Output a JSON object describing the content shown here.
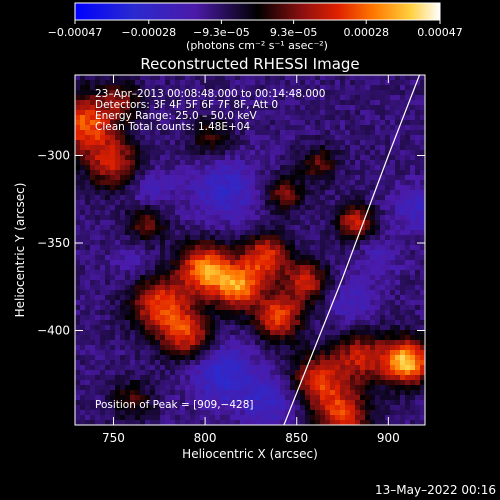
{
  "chart_data": {
    "type": "heatmap",
    "title": "Reconstructed RHESSI Image",
    "xlabel": "Heliocentric X (arcsec)",
    "ylabel": "Heliocentric Y (arcsec)",
    "xlim": [
      729,
      920
    ],
    "ylim": [
      -454,
      -254
    ],
    "x_ticks": [
      {
        "value": 750,
        "label": "750"
      },
      {
        "value": 800,
        "label": "800"
      },
      {
        "value": 850,
        "label": "850"
      },
      {
        "value": 900,
        "label": "900"
      }
    ],
    "y_ticks": [
      {
        "value": -300,
        "label": "−300"
      },
      {
        "value": -350,
        "label": "−350"
      },
      {
        "value": -400,
        "label": "−400"
      }
    ],
    "colorbar": {
      "range": [
        -0.00047,
        0.00047
      ],
      "ticks": [
        {
          "value": -0.00047,
          "label": "−0.00047"
        },
        {
          "value": -0.00028,
          "label": "−0.00028"
        },
        {
          "value": -9.3e-05,
          "label": "−9.3e−05"
        },
        {
          "value": 9.3e-05,
          "label": "9.3e−05"
        },
        {
          "value": 0.00028,
          "label": "0.00028"
        },
        {
          "value": 0.00047,
          "label": "0.00047"
        }
      ],
      "unit_label": "(photons cm⁻² s⁻¹ asec⁻²)"
    },
    "annotations": [
      "23–Apr–2013 00:08:48.000 to 00:14:48.000",
      "Detectors: 3F 4F 5F 6F 7F 8F, Att 0",
      "Energy Range: 25.0 – 50.0 keV",
      "Clean    Total counts: 1.48E+04"
    ],
    "peak_label": "Position of Peak = [909,−428]",
    "peak": [
      909,
      -428
    ],
    "limb_line": {
      "points": [
        [
          843,
          -454
        ],
        [
          875,
          -370
        ],
        [
          900,
          -300
        ],
        [
          917,
          -254
        ]
      ]
    },
    "hotspots": [
      {
        "x": 735,
        "y": -282,
        "intensity": 0.00034,
        "spread": 12
      },
      {
        "x": 750,
        "y": -305,
        "intensity": 0.00024,
        "spread": 10
      },
      {
        "x": 768,
        "y": -338,
        "intensity": 0.00016,
        "spread": 8
      },
      {
        "x": 775,
        "y": -385,
        "intensity": 0.0003,
        "spread": 11
      },
      {
        "x": 790,
        "y": -402,
        "intensity": 0.00028,
        "spread": 10
      },
      {
        "x": 800,
        "y": -365,
        "intensity": 0.0004,
        "spread": 10
      },
      {
        "x": 818,
        "y": -375,
        "intensity": 0.00036,
        "spread": 9
      },
      {
        "x": 833,
        "y": -358,
        "intensity": 0.0003,
        "spread": 9
      },
      {
        "x": 840,
        "y": -392,
        "intensity": 0.00032,
        "spread": 9
      },
      {
        "x": 855,
        "y": -372,
        "intensity": 0.00026,
        "spread": 8
      },
      {
        "x": 843,
        "y": -322,
        "intensity": 0.00018,
        "spread": 7
      },
      {
        "x": 862,
        "y": -305,
        "intensity": 0.00015,
        "spread": 7
      },
      {
        "x": 882,
        "y": -338,
        "intensity": 0.00026,
        "spread": 7
      },
      {
        "x": 803,
        "y": -290,
        "intensity": 0.00012,
        "spread": 8
      },
      {
        "x": 862,
        "y": -428,
        "intensity": 0.00028,
        "spread": 10
      },
      {
        "x": 885,
        "y": -415,
        "intensity": 0.00024,
        "spread": 10
      },
      {
        "x": 910,
        "y": -418,
        "intensity": 0.00047,
        "spread": 9
      },
      {
        "x": 875,
        "y": -448,
        "intensity": 0.0003,
        "spread": 10
      },
      {
        "x": 760,
        "y": -440,
        "intensity": 0.00012,
        "spread": 8
      },
      {
        "x": 755,
        "y": -268,
        "intensity": 0.00014,
        "spread": 7
      }
    ],
    "coldspots": [
      {
        "x": 810,
        "y": -320,
        "intensity": -0.0002,
        "spread": 12
      },
      {
        "x": 770,
        "y": -320,
        "intensity": -0.00014,
        "spread": 9
      },
      {
        "x": 810,
        "y": -425,
        "intensity": -0.00022,
        "spread": 12
      },
      {
        "x": 835,
        "y": -440,
        "intensity": -0.00018,
        "spread": 10
      },
      {
        "x": 880,
        "y": -385,
        "intensity": -0.00014,
        "spread": 9
      },
      {
        "x": 895,
        "y": -360,
        "intensity": -0.00012,
        "spread": 8
      },
      {
        "x": 915,
        "y": -330,
        "intensity": -0.00016,
        "spread": 9
      },
      {
        "x": 760,
        "y": -360,
        "intensity": -0.0001,
        "spread": 8
      }
    ]
  },
  "footer": {
    "timestamp": "13–May–2022 00:16"
  }
}
